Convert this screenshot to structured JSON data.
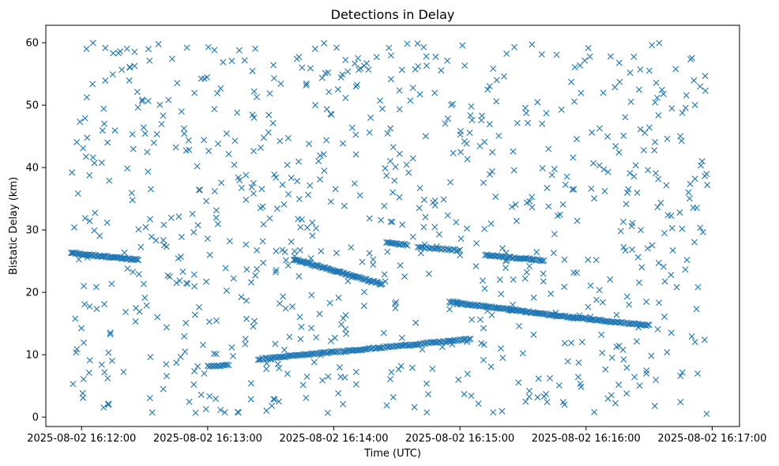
{
  "chart_data": {
    "type": "scatter",
    "title": "Detections in Delay",
    "xlabel": "Time (UTC)",
    "ylabel": "Bistatic Delay (km)",
    "x_axis": "time",
    "x_ticks": [
      "2025-08-02 16:12:00",
      "2025-08-02 16:13:00",
      "2025-08-02 16:14:00",
      "2025-08-02 16:15:00",
      "2025-08-02 16:16:00",
      "2025-08-02 16:17:00"
    ],
    "xlim": [
      "2025-08-02 16:11:43",
      "2025-08-02 16:17:13"
    ],
    "y_ticks": [
      0,
      10,
      20,
      30,
      40,
      50,
      60
    ],
    "ylim": [
      -1.5,
      62.8
    ],
    "grid": false,
    "marker": "x",
    "series_color": "#1f77b4",
    "tracks": [
      {
        "start": [
          "2025-08-02 16:11:55",
          26.3
        ],
        "end": [
          "2025-08-02 16:12:27",
          25.2
        ],
        "count": 60
      },
      {
        "start": [
          "2025-08-02 16:13:00",
          8.2
        ],
        "end": [
          "2025-08-02 16:13:10",
          8.3
        ],
        "count": 14
      },
      {
        "start": [
          "2025-08-02 16:13:24",
          9.3
        ],
        "end": [
          "2025-08-02 16:15:05",
          12.5
        ],
        "count": 150
      },
      {
        "start": [
          "2025-08-02 16:13:41",
          25.3
        ],
        "end": [
          "2025-08-02 16:14:23",
          21.3
        ],
        "count": 80
      },
      {
        "start": [
          "2025-08-02 16:14:25",
          28.0
        ],
        "end": [
          "2025-08-02 16:14:35",
          27.6
        ],
        "count": 16
      },
      {
        "start": [
          "2025-08-02 16:14:40",
          27.3
        ],
        "end": [
          "2025-08-02 16:15:00",
          26.7
        ],
        "count": 26
      },
      {
        "start": [
          "2025-08-02 16:15:12",
          26.0
        ],
        "end": [
          "2025-08-02 16:15:40",
          25.1
        ],
        "count": 45
      },
      {
        "start": [
          "2025-08-02 16:14:55",
          18.5
        ],
        "end": [
          "2025-08-02 16:15:45",
          16.3
        ],
        "count": 90
      },
      {
        "start": [
          "2025-08-02 16:15:45",
          16.3
        ],
        "end": [
          "2025-08-02 16:16:30",
          14.7
        ],
        "count": 70
      }
    ],
    "background_detections": {
      "count": 820,
      "time_range": [
        "2025-08-02 16:11:55",
        "2025-08-02 16:16:58"
      ],
      "delay_range": [
        0.5,
        60
      ]
    }
  }
}
